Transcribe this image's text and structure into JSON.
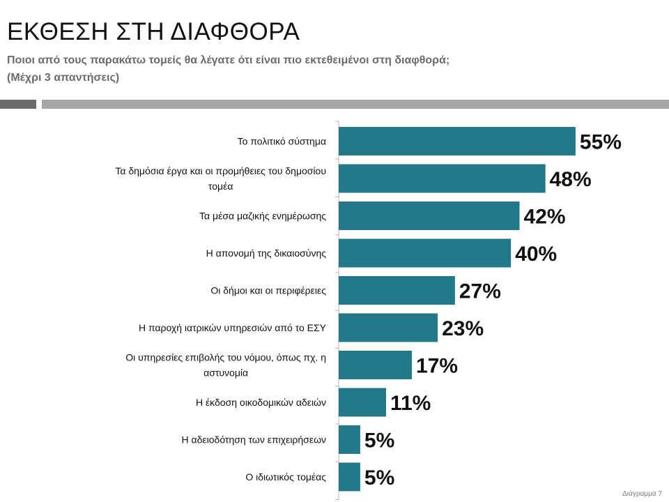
{
  "slide": {
    "title": "ΕΚΘΕΣΗ ΣΤΗ ΔΙΑΦΘΟΡΑ",
    "subtitle_line1": "Ποιοι από τους παρακάτω τομείς θα λέγατε ότι είναι πιο εκτεθειμένοι στη διαφθορά;",
    "subtitle_line2": "(Μέχρι 3 απαντήσεις)",
    "footer": "Διάγραμμα 7"
  },
  "chart_data": {
    "type": "bar",
    "orientation": "horizontal",
    "bar_color": "#237889",
    "xlim": [
      0,
      60
    ],
    "grid": false,
    "legend": "none",
    "categories": [
      [
        "Το πολιτικό σύστημα"
      ],
      [
        "Τα δημόσια έργα και οι προμήθειες του δημοσίου",
        "τομέα"
      ],
      [
        "Τα μέσα μαζικής ενημέρωσης"
      ],
      [
        "Η απονομή της δικαιοσύνης"
      ],
      [
        "Οι δήμοι  και οι  περιφέρειες"
      ],
      [
        "Η παροχή ιατρικών υπηρεσιών από το ΕΣΥ"
      ],
      [
        "Οι υπηρεσίες επιβολής του νόμου, όπως πχ. η",
        "αστυνομία"
      ],
      [
        "Η έκδοση οικοδομικών αδειών"
      ],
      [
        "Η αδειοδότηση των επιχειρήσεων"
      ],
      [
        "Ο ιδιωτικός τομέας"
      ]
    ],
    "values": [
      55,
      48,
      42,
      40,
      27,
      23,
      17,
      11,
      5,
      5
    ],
    "value_labels": [
      "55%",
      "48%",
      "42%",
      "40%",
      "27%",
      "23%",
      "17%",
      "11%",
      "5%",
      "5%"
    ]
  }
}
